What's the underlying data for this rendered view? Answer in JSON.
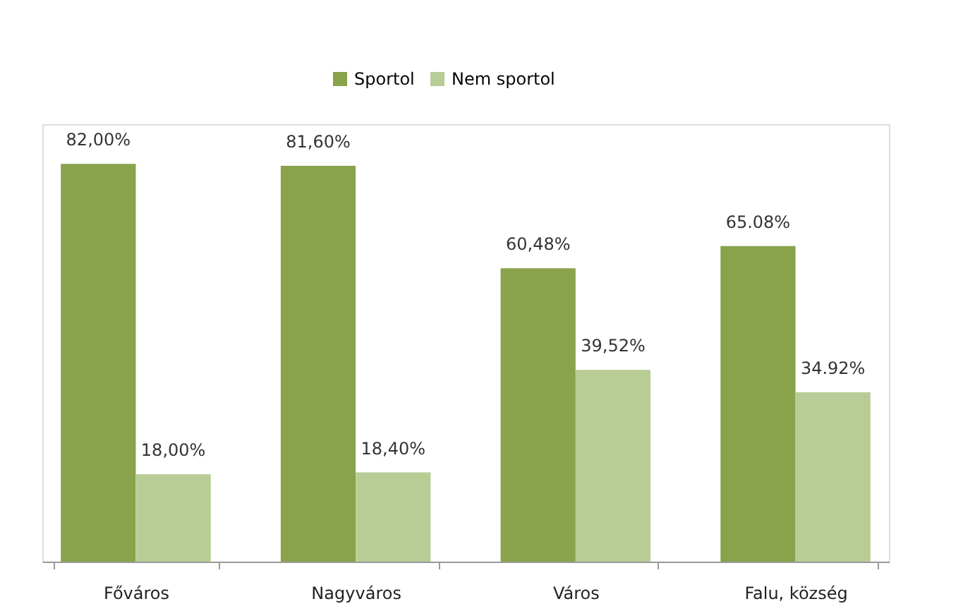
{
  "chart_data": {
    "type": "bar",
    "categories": [
      "Főváros",
      "Nagyváros",
      "Város",
      "Falu, község"
    ],
    "series": [
      {
        "name": "Sportol",
        "color": "#88a34c",
        "values": [
          82.0,
          81.6,
          60.48,
          65.08
        ],
        "value_labels": [
          "82,00%",
          "81,60%",
          "60,48%",
          "65.08%"
        ]
      },
      {
        "name": "Nem sportol",
        "color": "#b8cd95",
        "values": [
          18.0,
          18.4,
          39.52,
          34.92
        ],
        "value_labels": [
          "18,00%",
          "18,40%",
          "39,52%",
          "34.92%"
        ]
      }
    ],
    "legend": "top"
  }
}
